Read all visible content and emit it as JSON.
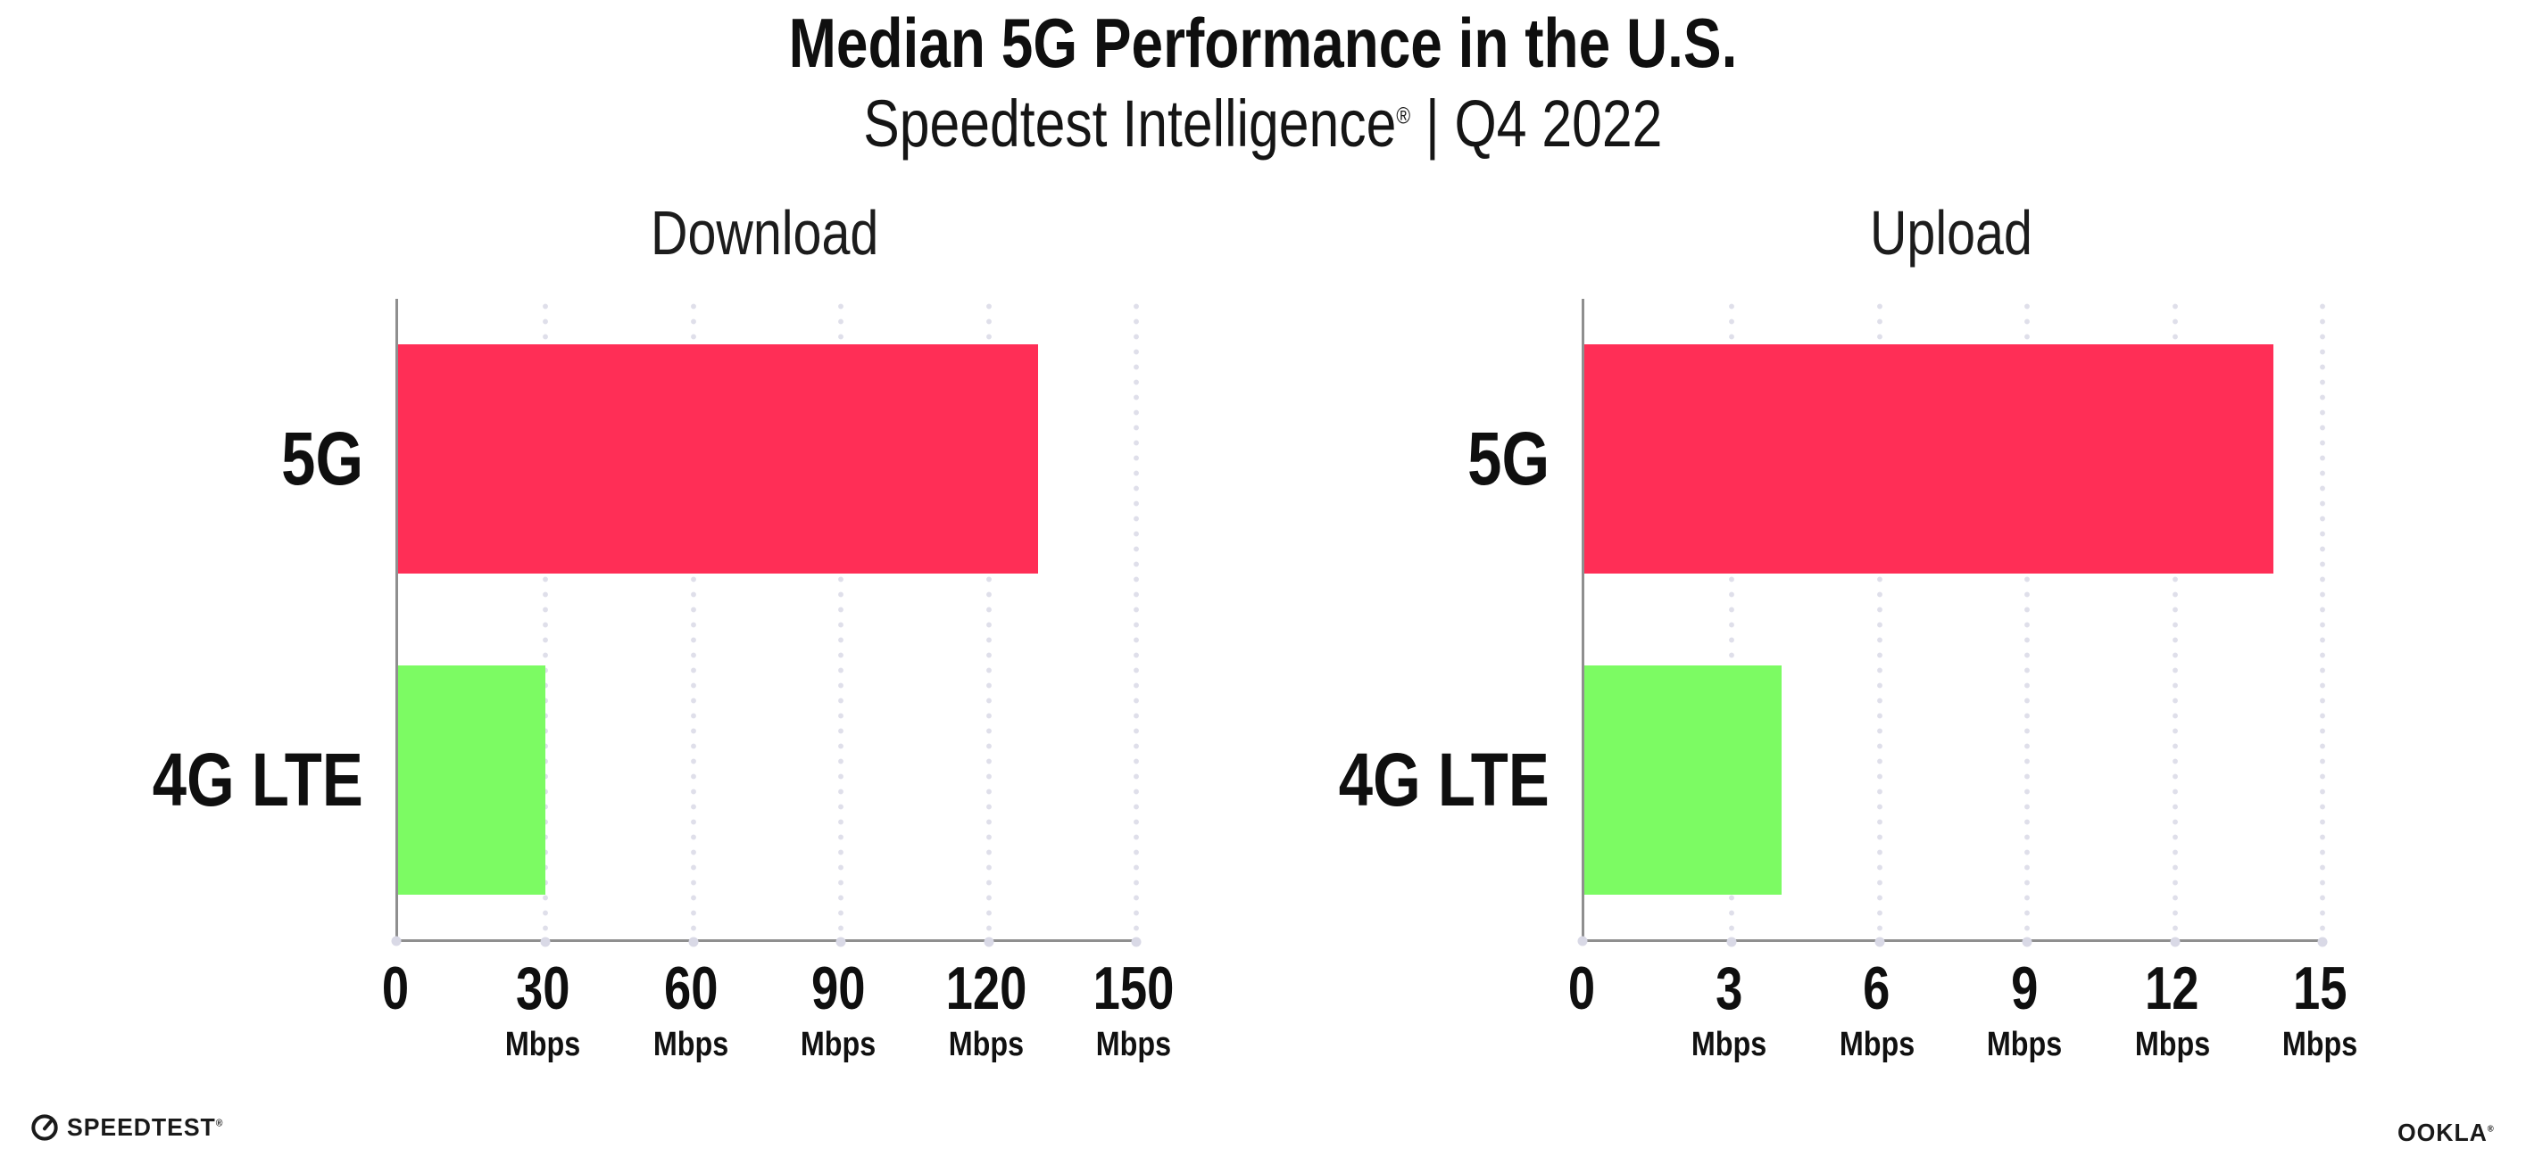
{
  "header": {
    "title": "Median 5G Performance in the U.S.",
    "subtitle_brand": "Speedtest Intelligence",
    "subtitle_reg": "®",
    "subtitle_rest": " | Q4 2022"
  },
  "chart_data": [
    {
      "type": "bar",
      "orientation": "horizontal",
      "title": "Download",
      "categories": [
        "5G",
        "4G LTE"
      ],
      "values": [
        130,
        30
      ],
      "unit": "Mbps",
      "xlim": [
        0,
        150
      ],
      "tick_labels": [
        "0",
        "30",
        "60",
        "90",
        "120",
        "150"
      ],
      "tick_unit": "Mbps",
      "bar_colors": [
        "#ff2e56",
        "#7cfb63"
      ],
      "grid": "dotted vertical gridlines",
      "legend": "none"
    },
    {
      "type": "bar",
      "orientation": "horizontal",
      "title": "Upload",
      "categories": [
        "5G",
        "4G LTE"
      ],
      "values": [
        14,
        4
      ],
      "unit": "Mbps",
      "xlim": [
        0,
        15
      ],
      "tick_labels": [
        "0",
        "3",
        "6",
        "9",
        "12",
        "15"
      ],
      "tick_unit": "Mbps",
      "bar_colors": [
        "#ff2e56",
        "#7cfb63"
      ],
      "grid": "dotted vertical gridlines",
      "legend": "none"
    }
  ],
  "footer": {
    "speedtest_label": "SPEEDTEST",
    "speedtest_reg": "®",
    "ookla_label": "OOKLA",
    "ookla_reg": "®"
  },
  "colors": {
    "bar_5g": "#ff2e56",
    "bar_4g_lte": "#7cfb63",
    "axis": "#8f8f8f",
    "gridline_dot": "#dfdfea",
    "text": "#0f0f0f",
    "background": "#ffffff"
  }
}
